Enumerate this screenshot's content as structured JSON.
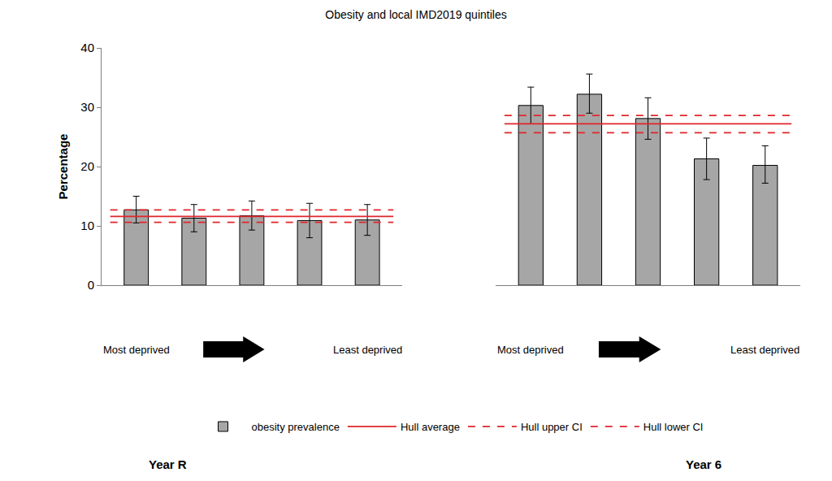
{
  "chart_data": {
    "type": "bar",
    "title": "Obesity and local IMD2019 quintiles",
    "ylabel": "Percentage",
    "ylim": [
      0,
      40
    ],
    "yticks": [
      0,
      10,
      20,
      30,
      40
    ],
    "grid": false,
    "legend": "bottom",
    "start_label": "Most deprived",
    "end_label": "Least deprived",
    "panels": [
      {
        "label": "Year R",
        "categories": [
          null,
          null,
          null,
          null,
          null
        ]
      },
      {
        "label": "Year 6",
        "categories": [
          null,
          null,
          null,
          null,
          null
        ]
      }
    ],
    "series": [
      {
        "name": "obesity prevalence",
        "type": "bar",
        "color": "#a6a6a6",
        "values": [
          [
            12.7,
            11.3,
            11.7,
            10.9,
            11.0
          ],
          [
            30.3,
            32.2,
            28.1,
            21.3,
            20.2
          ]
        ],
        "ci_lower": [
          [
            10.5,
            9.0,
            9.3,
            8.0,
            8.4
          ],
          [
            27.2,
            29.0,
            24.6,
            17.8,
            17.2
          ]
        ],
        "ci_upper": [
          [
            15.0,
            13.6,
            14.2,
            13.8,
            13.6
          ],
          [
            33.4,
            35.6,
            31.6,
            24.8,
            23.5
          ]
        ]
      },
      {
        "name": "Hull average",
        "type": "line",
        "color": "#e0262b",
        "line_style": "solid",
        "values": [
          11.6,
          27.2
        ]
      },
      {
        "name": "Hull upper CI",
        "type": "line",
        "color": "#e0262b",
        "line_style": "dashed",
        "values": [
          12.7,
          28.6
        ]
      },
      {
        "name": "Hull lower CI",
        "type": "line",
        "color": "#e0262b",
        "line_style": "dashed",
        "values": [
          10.6,
          25.7
        ]
      }
    ]
  }
}
